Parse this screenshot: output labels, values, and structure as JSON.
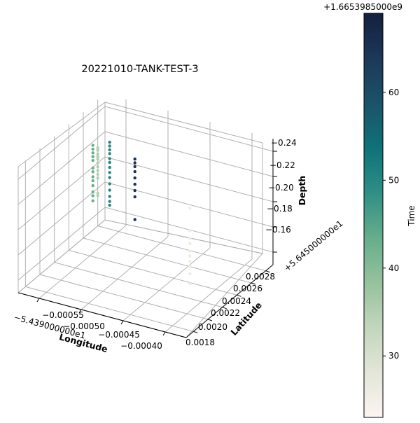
{
  "chart_data": {
    "type": "scatter",
    "projection": "3d",
    "title": "20221010-TANK-TEST-3",
    "xlabel": "Longitude",
    "ylabel": "Latitude",
    "zlabel": "Depth",
    "x_offset_label": "−5.439000000e1",
    "y_offset_label": "+5.645000000e1",
    "x_ticks": [
      "−0.00055",
      "−0.00050",
      "−0.00045",
      "−0.00040"
    ],
    "y_ticks": [
      "0.0018",
      "0.0020",
      "0.0022",
      "0.0024",
      "0.0026",
      "0.0028"
    ],
    "z_ticks": [
      "−0.24",
      "−0.22",
      "−0.20",
      "−0.18",
      "−0.16"
    ],
    "colorbar": {
      "label": "Time",
      "offset_label": "+1.6653985000e9",
      "ticks": [
        "30",
        "40",
        "50",
        "60"
      ],
      "range": [
        23,
        69
      ],
      "cmap": [
        "#fcf4f2",
        "#e3e6d8",
        "#c2d6bc",
        "#95c29d",
        "#66ad8b",
        "#2f8f86",
        "#0e7278",
        "#1c5269",
        "#1c3858",
        "#14203f"
      ]
    },
    "groups": [
      {
        "time": 35,
        "x": -0.000575,
        "y": 0.0028,
        "z_range": [
          -0.226,
          -0.188
        ],
        "points": [
          -0.226,
          -0.224,
          -0.212,
          -0.209,
          -0.206,
          -0.203,
          -0.2,
          -0.197,
          -0.195,
          -0.193,
          -0.19,
          -0.188
        ]
      },
      {
        "time": 43,
        "x": -0.000555,
        "y": 0.0025,
        "z_range": [
          -0.212,
          -0.168
        ],
        "points": [
          -0.212,
          -0.208,
          -0.205,
          -0.2,
          -0.196,
          -0.193,
          -0.189,
          -0.186,
          -0.18,
          -0.177,
          -0.174,
          -0.171,
          -0.168
        ]
      },
      {
        "time": 50,
        "x": -0.000535,
        "y": 0.0025,
        "z_range": [
          -0.212,
          -0.162
        ],
        "points": [
          -0.212,
          -0.209,
          -0.205,
          -0.2,
          -0.195,
          -0.19,
          -0.186,
          -0.182,
          -0.178,
          -0.175,
          -0.171,
          -0.168,
          -0.165,
          -0.162
        ]
      },
      {
        "time": 65,
        "x": -0.000505,
        "y": 0.0025,
        "z_range": [
          -0.218,
          -0.17
        ],
        "points": [
          -0.218,
          -0.2,
          -0.195,
          -0.19,
          -0.185,
          -0.18,
          -0.176,
          -0.173,
          -0.17
        ]
      },
      {
        "time": 26,
        "x": -0.000405,
        "y": 0.0021,
        "z_range": [
          -0.232,
          -0.172
        ],
        "points": [
          -0.232,
          -0.224,
          -0.218,
          -0.214,
          -0.21,
          -0.206,
          -0.2,
          -0.196,
          -0.19,
          -0.172
        ]
      }
    ]
  }
}
